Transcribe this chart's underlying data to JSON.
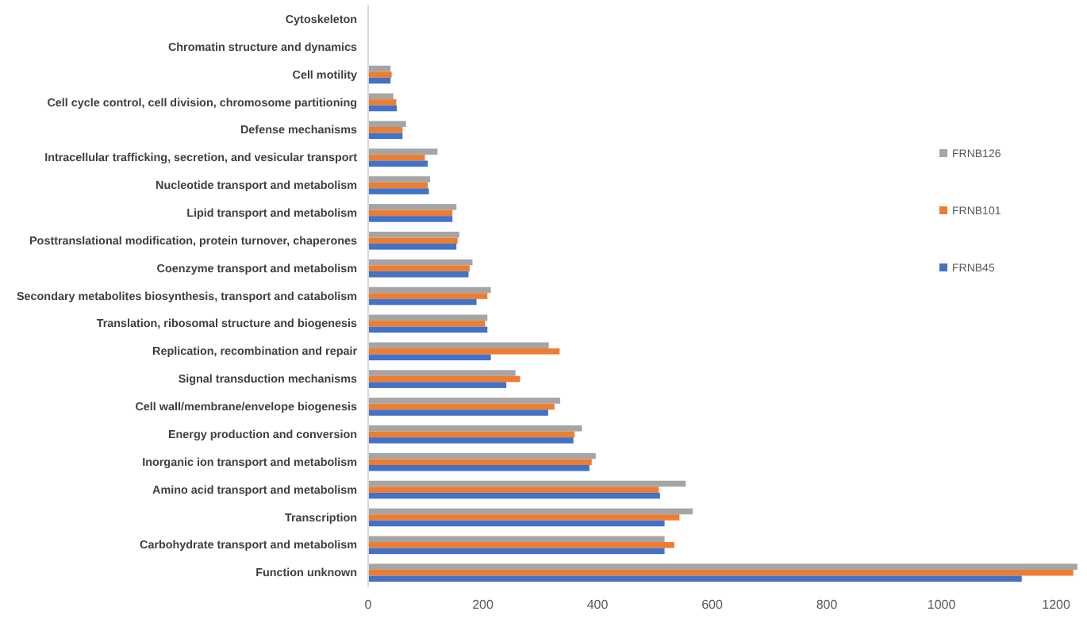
{
  "chart_data": {
    "type": "bar",
    "orientation": "horizontal",
    "categories": [
      "Cytoskeleton",
      "Chromatin structure and dynamics",
      "Cell motility",
      "Cell cycle control, cell division, chromosome partitioning",
      "Defense mechanisms",
      "Intracellular trafficking, secretion, and vesicular transport",
      "Nucleotide transport and metabolism",
      "Lipid transport and metabolism",
      "Posttranslational modification, protein turnover, chaperones",
      "Coenzyme transport and metabolism",
      "Secondary metabolites biosynthesis, transport and catabolism",
      "Translation, ribosomal structure and biogenesis",
      "Replication, recombination and repair",
      "Signal transduction mechanisms",
      "Cell wall/membrane/envelope biogenesis",
      "Energy production and conversion",
      "Inorganic ion transport and metabolism",
      "Amino acid transport and metabolism",
      "Transcription",
      "Carbohydrate transport and metabolism",
      "Function unknown"
    ],
    "series": [
      {
        "name": "FRNB126",
        "color": "#a5a5a5",
        "values": [
          0,
          0,
          39,
          44,
          66,
          121,
          108,
          154,
          159,
          182,
          214,
          208,
          315,
          257,
          335,
          373,
          397,
          554,
          566,
          517,
          1237
        ]
      },
      {
        "name": "FRNB101",
        "color": "#ed7d31",
        "values": [
          0,
          0,
          41,
          49,
          60,
          99,
          104,
          147,
          156,
          177,
          208,
          204,
          334,
          265,
          325,
          360,
          390,
          507,
          543,
          534,
          1230
        ]
      },
      {
        "name": "FRNB45",
        "color": "#4472c4",
        "values": [
          0,
          0,
          39,
          50,
          60,
          104,
          106,
          147,
          154,
          175,
          189,
          208,
          214,
          241,
          314,
          358,
          386,
          509,
          517,
          517,
          1140
        ]
      }
    ],
    "xlim": [
      0,
      1240
    ],
    "xticks": [
      0,
      200,
      400,
      600,
      800,
      1000,
      1200
    ],
    "legend": "right"
  }
}
